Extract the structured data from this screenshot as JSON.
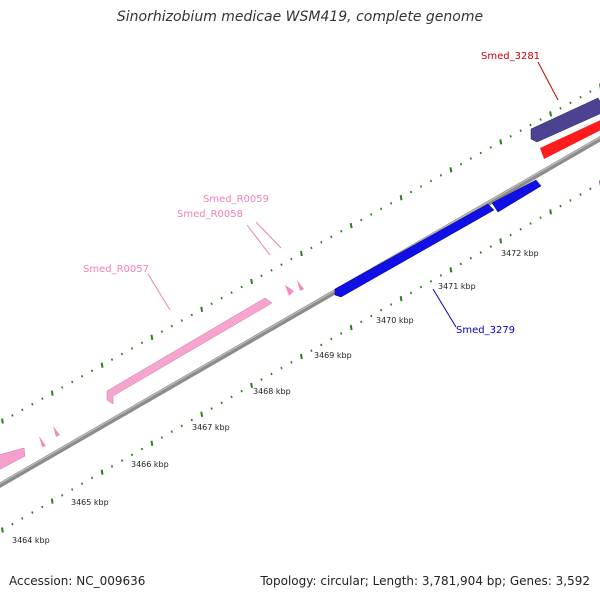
{
  "header": {
    "title": "Sinorhizobium medicae WSM419, complete genome"
  },
  "footer": {
    "accession": "Accession: NC_009636",
    "summary": "Topology: circular; Length: 3,781,904 bp; Genes: 3,592"
  },
  "colors": {
    "backbone": "#8c8c8c",
    "tick": "#2e7d1f",
    "rna": "#f08cc0",
    "forward_gene": "#0c0ce8",
    "gene_3281_outer": "#4a3f8e",
    "gene_3281_inner": "#ff1a1a",
    "label_3281": "#cc0000",
    "label_3279": "#0000cc",
    "label_rna": "#f080b8"
  },
  "ruler": {
    "tick_labels": [
      "3464 kbp",
      "3465 kbp",
      "3466 kbp",
      "3467 kbp",
      "3468 kbp",
      "3469 kbp",
      "3470 kbp",
      "3471 kbp",
      "3472 kbp"
    ]
  },
  "features": {
    "smed_3281": "Smed_3281",
    "smed_r0059": "Smed_R0059",
    "smed_r0058": "Smed_R0058",
    "smed_r0057": "Smed_R0057",
    "smed_3279": "Smed_3279"
  }
}
